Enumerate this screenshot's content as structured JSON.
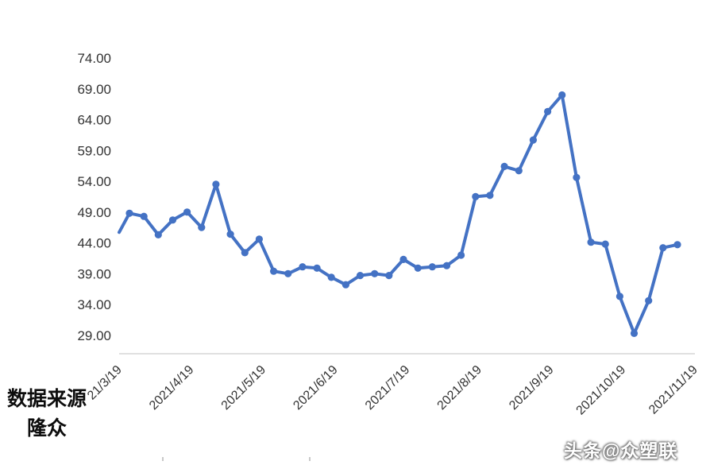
{
  "chart_data": {
    "type": "line",
    "title": "",
    "legend": "none",
    "grid": false,
    "line_color": "#4472c4",
    "marker": "circle",
    "ylim": [
      26,
      74
    ],
    "y_tick_values": [
      29,
      34,
      39,
      44,
      49,
      54,
      59,
      64,
      69,
      74
    ],
    "y_tick_labels": [
      "29.00",
      "34.00",
      "39.00",
      "44.00",
      "49.00",
      "54.00",
      "59.00",
      "64.00",
      "69.00",
      "74.00"
    ],
    "x_tick_labels": [
      "21/3/19",
      "2021/4/19",
      "2021/5/19",
      "2021/6/19",
      "2021/7/19",
      "2021/8/19",
      "2021/9/19",
      "2021/10/19",
      "2021/11/19"
    ],
    "clipped_start_value": 45.7,
    "values": [
      48.8,
      48.3,
      45.3,
      47.7,
      49.0,
      46.5,
      53.5,
      45.4,
      42.4,
      44.6,
      39.4,
      39.0,
      40.1,
      39.9,
      38.4,
      37.2,
      38.7,
      39.0,
      38.7,
      41.3,
      39.9,
      40.1,
      40.3,
      42.0,
      51.5,
      51.7,
      56.4,
      55.7,
      60.7,
      65.3,
      68.0,
      54.6,
      44.1,
      43.8,
      35.3,
      29.3,
      34.6,
      43.2,
      43.7
    ]
  },
  "footer": {
    "source_line1": "数据来源",
    "source_line2": "隆众"
  },
  "watermark": {
    "text": "头条@众塑联"
  }
}
